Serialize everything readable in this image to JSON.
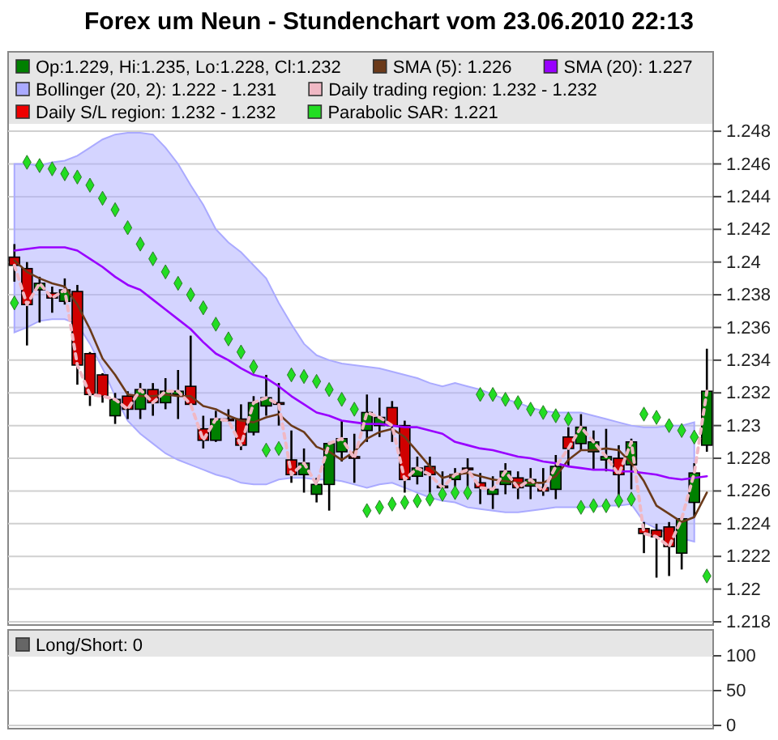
{
  "chart_data": [
    {
      "type": "candlestick",
      "title": "Forex um Neun - Stundenchart vom 23.06.2010 22:13",
      "categories": [
        null,
        null,
        null,
        null,
        null,
        null,
        null,
        null,
        null,
        null,
        null,
        null,
        null,
        null,
        null,
        null,
        null,
        null,
        null,
        null,
        null,
        null,
        null,
        null,
        null,
        null,
        null,
        null,
        null,
        null,
        null,
        null,
        null,
        null,
        null,
        null,
        null,
        null,
        null,
        null,
        null,
        null,
        null,
        null,
        null,
        null,
        null,
        null,
        null,
        null,
        null,
        null,
        null,
        null,
        null,
        null
      ],
      "series": [
        {
          "name": "Op:1.229, Hi:1.235, Lo:1.228, Cl:1.232",
          "colors": [
            "#d00000",
            "#d00000",
            "#008000",
            "#d00000",
            "#008000",
            "#d00000",
            "#d00000",
            "#d00000",
            "#008000",
            "#d00000",
            "#008000",
            "#d00000",
            "#008000",
            "#008000",
            "#d00000",
            "#d00000",
            "#008000",
            "#d00000",
            "#d00000",
            "#008000",
            "#008000",
            "#d00000",
            "#d00000",
            "#008000",
            "#008000",
            "#008000",
            "#008000",
            "#d00000",
            "#008000",
            "#008000",
            "#d00000",
            "#d00000",
            "#008000",
            "#d00000",
            "#d00000",
            "#008000",
            "#d00000",
            "#d00000",
            "#008000",
            "#008000",
            "#d00000",
            "#008000",
            "#d00000",
            "#008000",
            "#d00000",
            "#008000",
            "#008000",
            "#008000",
            "#d00000",
            "#008000",
            "#d00000",
            "#d00000",
            "#d00000",
            "#008000",
            "#008000",
            "#008000"
          ],
          "ohlc": [
            [
              1.2403,
              1.2411,
              1.2388,
              1.2398
            ],
            [
              1.2396,
              1.24,
              1.2349,
              1.2374
            ],
            [
              1.2383,
              1.2391,
              1.2363,
              1.2387
            ],
            [
              1.2381,
              1.2385,
              1.2369,
              1.2378
            ],
            [
              1.2376,
              1.239,
              1.2374,
              1.2383
            ],
            [
              1.2382,
              1.2386,
              1.2325,
              1.2337
            ],
            [
              1.2344,
              1.2345,
              1.2312,
              1.2319
            ],
            [
              1.2331,
              1.2332,
              1.2314,
              1.2318
            ],
            [
              1.2306,
              1.232,
              1.2301,
              1.2316
            ],
            [
              1.2318,
              1.2321,
              1.2304,
              1.231
            ],
            [
              1.231,
              1.2326,
              1.2304,
              1.2322
            ],
            [
              1.2322,
              1.2326,
              1.2306,
              1.2314
            ],
            [
              1.2314,
              1.2329,
              1.231,
              1.2321
            ],
            [
              1.2319,
              1.2334,
              1.2304,
              1.2321
            ],
            [
              1.2324,
              1.2355,
              1.2312,
              1.2313
            ],
            [
              1.2298,
              1.2306,
              1.2286,
              1.2291
            ],
            [
              1.2291,
              1.2309,
              1.229,
              1.2304
            ],
            [
              1.2304,
              1.231,
              1.2303,
              1.2303
            ],
            [
              1.2304,
              1.2313,
              1.2285,
              1.2288
            ],
            [
              1.2296,
              1.2318,
              1.2294,
              1.2314
            ],
            [
              1.2312,
              1.2331,
              1.2306,
              1.2317
            ],
            [
              1.2314,
              1.2326,
              1.23,
              1.2313
            ],
            [
              1.2279,
              1.2297,
              1.2265,
              1.227
            ],
            [
              1.227,
              1.2286,
              1.2259,
              1.2277
            ],
            [
              1.2258,
              1.2268,
              1.2253,
              1.2264
            ],
            [
              1.2264,
              1.229,
              1.2248,
              1.2289
            ],
            [
              1.2284,
              1.2303,
              1.2278,
              1.2292
            ],
            [
              1.2281,
              1.2295,
              1.2265,
              1.228
            ],
            [
              1.2297,
              1.2319,
              1.229,
              1.2308
            ],
            [
              1.23,
              1.2317,
              1.2293,
              1.2305
            ],
            [
              1.2311,
              1.2315,
              1.229,
              1.23
            ],
            [
              1.23,
              1.2303,
              1.2259,
              1.2267
            ],
            [
              1.2269,
              1.2281,
              1.2264,
              1.2274
            ],
            [
              1.2275,
              1.2281,
              1.2259,
              1.227
            ],
            [
              1.2263,
              1.2272,
              1.2258,
              1.2262
            ],
            [
              1.2267,
              1.2274,
              1.226,
              1.227
            ],
            [
              1.2274,
              1.228,
              1.2261,
              1.2273
            ],
            [
              1.2265,
              1.2271,
              1.2252,
              1.2262
            ],
            [
              1.2258,
              1.2269,
              1.2249,
              1.2261
            ],
            [
              1.2264,
              1.2277,
              1.2258,
              1.2272
            ],
            [
              1.2268,
              1.2272,
              1.2255,
              1.2262
            ],
            [
              1.2263,
              1.2274,
              1.2255,
              1.2267
            ],
            [
              1.2262,
              1.2274,
              1.2257,
              1.226
            ],
            [
              1.2261,
              1.2282,
              1.2255,
              1.2275
            ],
            [
              1.2293,
              1.2299,
              1.2275,
              1.2286
            ],
            [
              1.2289,
              1.2307,
              1.2285,
              1.2299
            ],
            [
              1.2284,
              1.2297,
              1.2273,
              1.229
            ],
            [
              1.2279,
              1.2298,
              1.2272,
              1.2281
            ],
            [
              1.228,
              1.2288,
              1.2257,
              1.227
            ],
            [
              1.2276,
              1.2292,
              1.2261,
              1.229
            ],
            [
              1.2237,
              1.2241,
              1.2222,
              1.2234
            ],
            [
              1.2236,
              1.224,
              1.2207,
              1.2232
            ],
            [
              1.2238,
              1.2241,
              1.2208,
              1.2226
            ],
            [
              1.2222,
              1.2244,
              1.2212,
              1.2243
            ],
            [
              1.2253,
              1.2277,
              1.2244,
              1.2271
            ],
            [
              1.2288,
              1.2347,
              1.2284,
              1.2321
            ]
          ]
        },
        {
          "type": "line",
          "name": "SMA (5): 1.226",
          "color": "#6b3a1a",
          "values": [
            1.2401,
            1.2394,
            1.239,
            1.2387,
            1.2385,
            1.2374,
            1.2359,
            1.2341,
            1.2331,
            1.2319,
            1.2318,
            1.2318,
            1.2319,
            1.2318,
            1.2318,
            1.2312,
            1.231,
            1.2306,
            1.2303,
            1.2302,
            1.2305,
            1.2307,
            1.23,
            1.2296,
            1.2287,
            1.2284,
            1.2279,
            1.2284,
            1.2292,
            1.2296,
            1.2298,
            1.2293,
            1.2284,
            1.2275,
            1.2268,
            1.227,
            1.2271,
            1.2269,
            1.2267,
            1.2266,
            1.2265,
            1.2265,
            1.2265,
            1.2269,
            1.2279,
            1.2285,
            1.2285,
            1.2286,
            1.2285,
            1.2277,
            1.2266,
            1.2251,
            1.2246,
            1.2241,
            1.2244,
            1.2259
          ]
        },
        {
          "type": "line",
          "name": "SMA (20): 1.227",
          "color": "#9900ff",
          "values": [
            1.2407,
            1.2408,
            1.2409,
            1.2409,
            1.2409,
            1.2407,
            1.2402,
            1.2397,
            1.2391,
            1.2386,
            1.2383,
            1.2377,
            1.2371,
            1.2365,
            1.2359,
            1.2351,
            1.2344,
            1.234,
            1.2335,
            1.2331,
            1.2329,
            1.2324,
            1.2318,
            1.2313,
            1.2308,
            1.2306,
            1.2303,
            1.2302,
            1.2301,
            1.2301,
            1.23,
            1.2299,
            1.2299,
            1.2297,
            1.2295,
            1.229,
            1.2288,
            1.2286,
            1.2285,
            1.2283,
            1.2281,
            1.228,
            1.2278,
            1.2277,
            1.2275,
            1.2274,
            1.2273,
            1.2273,
            1.2272,
            1.2272,
            1.2271,
            1.227,
            1.2268,
            1.2267,
            1.2268,
            1.2269
          ]
        },
        {
          "type": "line",
          "name": "Bollinger (20, 2): 1.222 - 1.231",
          "color": "#aaaaff",
          "values": [
            null,
            null,
            null,
            null,
            null,
            null,
            null,
            null,
            null,
            null,
            null,
            null,
            null,
            null,
            null,
            null,
            null,
            null,
            null,
            null,
            null,
            null,
            null,
            null,
            null,
            null,
            null,
            null,
            null,
            null,
            null,
            null,
            null,
            null,
            null,
            null,
            null,
            null,
            null,
            null,
            null,
            null,
            null,
            null,
            null,
            null,
            null,
            null,
            null,
            null,
            null,
            null,
            null,
            null,
            null,
            null
          ],
          "upper": [
            1.246,
            1.246,
            1.2459,
            1.2461,
            1.2462,
            1.2465,
            1.247,
            1.2475,
            1.2478,
            1.2479,
            1.2479,
            1.2478,
            1.247,
            1.246,
            1.2447,
            1.2435,
            1.242,
            1.2412,
            1.2406,
            1.2398,
            1.239,
            1.2375,
            1.2362,
            1.235,
            1.2343,
            1.234,
            1.2338,
            1.2337,
            1.2336,
            1.2335,
            1.2333,
            1.2331,
            1.2329,
            1.2326,
            1.2324,
            1.2326,
            1.2324,
            1.2322,
            1.2319,
            1.2316,
            1.2314,
            1.2311,
            1.2309,
            1.2308,
            1.2308,
            1.2308,
            1.2306,
            1.2304,
            1.2302,
            1.23,
            1.2299,
            1.2299,
            1.23,
            1.23,
            1.2302,
            null
          ],
          "lower": [
            1.2357,
            1.236,
            1.2364,
            1.2365,
            1.2365,
            1.2362,
            1.235,
            1.2335,
            1.2318,
            1.2303,
            1.2295,
            1.2289,
            1.2283,
            1.2279,
            1.2276,
            1.2273,
            1.227,
            1.2268,
            1.2265,
            1.2264,
            1.2264,
            1.2267,
            1.2268,
            1.2268,
            1.2267,
            1.2267,
            1.2266,
            1.2264,
            1.2262,
            1.2264,
            1.2265,
            1.2262,
            1.2259,
            1.2256,
            1.2254,
            1.2253,
            1.225,
            1.2249,
            1.2248,
            1.2247,
            1.2247,
            1.2248,
            1.2249,
            1.225,
            1.225,
            1.225,
            1.225,
            1.2251,
            1.2251,
            1.2252,
            1.2241,
            1.2237,
            1.2234,
            1.2231,
            1.2229,
            null
          ]
        },
        {
          "type": "line",
          "name": "Daily trading region: 1.232 - 1.232",
          "color": "#f0b8c4",
          "line_style": "dashed",
          "values": [
            1.2398,
            1.2374,
            1.2387,
            1.2378,
            1.2383,
            1.2337,
            1.2319,
            1.2318,
            1.2316,
            1.231,
            1.2322,
            1.2314,
            1.2321,
            1.2321,
            1.2313,
            1.2291,
            1.2304,
            1.2303,
            1.2288,
            1.2314,
            1.2317,
            1.2313,
            1.227,
            1.2277,
            1.2264,
            1.2289,
            1.2292,
            1.228,
            1.2308,
            1.2305,
            1.23,
            1.2267,
            1.2274,
            1.227,
            1.2262,
            1.227,
            1.2273,
            1.2262,
            1.2261,
            1.2272,
            1.2262,
            1.2267,
            1.226,
            1.2275,
            1.2286,
            1.2299,
            1.229,
            1.2281,
            1.227,
            1.229,
            1.2234,
            1.2232,
            1.2226,
            1.2243,
            1.2271,
            1.2321
          ]
        },
        {
          "type": "line",
          "name": "Daily S/L region: 1.232 - 1.232",
          "color": "#ee0000",
          "values": [
            null,
            null,
            null,
            null,
            null,
            null,
            null,
            null,
            null,
            null,
            null,
            null,
            null,
            null,
            null,
            null,
            null,
            null,
            null,
            null,
            null,
            null,
            null,
            null,
            null,
            null,
            null,
            null,
            null,
            null,
            null,
            null,
            null,
            null,
            null,
            null,
            null,
            null,
            null,
            null,
            null,
            null,
            null,
            null,
            null,
            null,
            null,
            null,
            null,
            null,
            null,
            null,
            null,
            null,
            null,
            null
          ]
        },
        {
          "type": "scatter",
          "name": "Parabolic SAR: 1.221",
          "color": "#22dd22",
          "marker": "diamond",
          "values": [
            1.2375,
            1.2461,
            1.2459,
            1.2457,
            1.2454,
            1.2452,
            1.2447,
            1.2439,
            1.2432,
            1.2421,
            1.2411,
            1.2402,
            1.2394,
            1.2387,
            1.238,
            1.2372,
            1.2362,
            1.2353,
            1.2345,
            1.2336,
            1.2285,
            1.2286,
            1.2331,
            1.233,
            1.2327,
            1.2322,
            1.2316,
            1.231,
            1.2248,
            1.225,
            1.2252,
            1.2253,
            1.2254,
            1.2255,
            1.2258,
            1.2259,
            1.2259,
            1.2319,
            1.2319,
            1.2316,
            1.2314,
            1.231,
            1.2308,
            1.2306,
            1.2304,
            1.225,
            1.2251,
            1.2251,
            1.2254,
            1.2255,
            1.2307,
            1.2305,
            1.23,
            1.2297,
            1.2293,
            1.2208
          ]
        }
      ],
      "ylim": [
        1.218,
        1.2485
      ],
      "yticks": [
        1.218,
        1.22,
        1.222,
        1.224,
        1.226,
        1.228,
        1.23,
        1.232,
        1.234,
        1.236,
        1.238,
        1.24,
        1.242,
        1.244,
        1.246,
        1.248
      ],
      "grid": "y",
      "legend": "top"
    },
    {
      "type": "line",
      "categories": [
        null,
        null,
        null,
        null,
        null,
        null,
        null,
        null,
        null,
        null,
        null,
        null,
        null,
        null,
        null,
        null,
        null,
        null,
        null,
        null,
        null,
        null,
        null,
        null,
        null,
        null,
        null,
        null,
        null,
        null,
        null,
        null,
        null,
        null,
        null,
        null,
        null,
        null,
        null,
        null,
        null,
        null,
        null,
        null,
        null,
        null,
        null,
        null,
        null,
        null,
        null,
        null,
        null,
        null,
        null,
        null
      ],
      "series": [
        {
          "name": "Long/Short: 0",
          "color": "#666666",
          "values": [
            null,
            null,
            null,
            null,
            null,
            null,
            null,
            null,
            null,
            null,
            null,
            null,
            null,
            null,
            null,
            null,
            null,
            null,
            null,
            null,
            null,
            null,
            null,
            null,
            null,
            null,
            null,
            null,
            null,
            null,
            null,
            null,
            null,
            null,
            null,
            null,
            null,
            null,
            null,
            null,
            null,
            null,
            null,
            null,
            null,
            null,
            null,
            null,
            null,
            null,
            null,
            null,
            null,
            null,
            null,
            null
          ]
        }
      ],
      "ylim": [
        0,
        100
      ],
      "yticks": [
        0,
        50,
        100
      ],
      "grid": "y",
      "legend": "top"
    }
  ]
}
